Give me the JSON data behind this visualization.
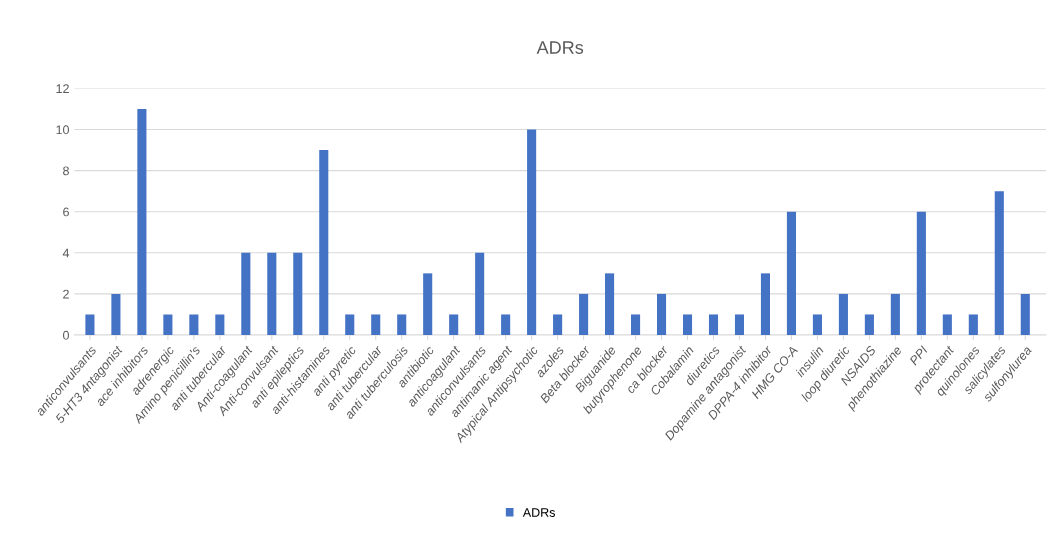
{
  "chart_data": {
    "type": "bar",
    "title": "ADRs",
    "categories": [
      "anticonvulsants",
      "5-HT3 4ntagonist",
      "ace inhibitors",
      "adrenergic",
      "Amino penicillin's",
      "anti tubercular",
      "Anti-coagulant",
      "Anti-convulsant",
      "anti epileptics",
      "anti-histamines",
      "anti pyretic",
      "anti tubercular",
      "anti tuberculosis",
      "antibiotic",
      "anticoagulant",
      "anticonvulsants",
      "antimanic agent",
      "Atypical Antipsychotic",
      "azoles",
      "Beta blocker",
      "Biguanide",
      "butyrophenone",
      "ca blocker",
      "Cobalamin",
      "diuretics",
      "Dopamine antagonist",
      "DPPA-4 inhibitor",
      "HMG CO-A",
      "insulin",
      "loop diuretic",
      "NSAIDS",
      "phenothiazine",
      "PPI",
      "protectant",
      "quinolones",
      "salicylates",
      "sulfonylurea"
    ],
    "series": [
      {
        "name": "ADRs",
        "color": "#4472c4",
        "values": [
          1,
          2,
          11,
          1,
          1,
          1,
          4,
          4,
          4,
          9,
          1,
          1,
          1,
          3,
          1,
          4,
          1,
          10,
          1,
          2,
          3,
          1,
          2,
          1,
          1,
          1,
          3,
          6,
          1,
          2,
          1,
          2,
          6,
          1,
          1,
          7,
          2
        ]
      }
    ],
    "ylim": [
      0,
      12
    ],
    "yticks": [
      0,
      2,
      4,
      6,
      8,
      10,
      12
    ],
    "grid": "y",
    "legend": "bottom"
  }
}
